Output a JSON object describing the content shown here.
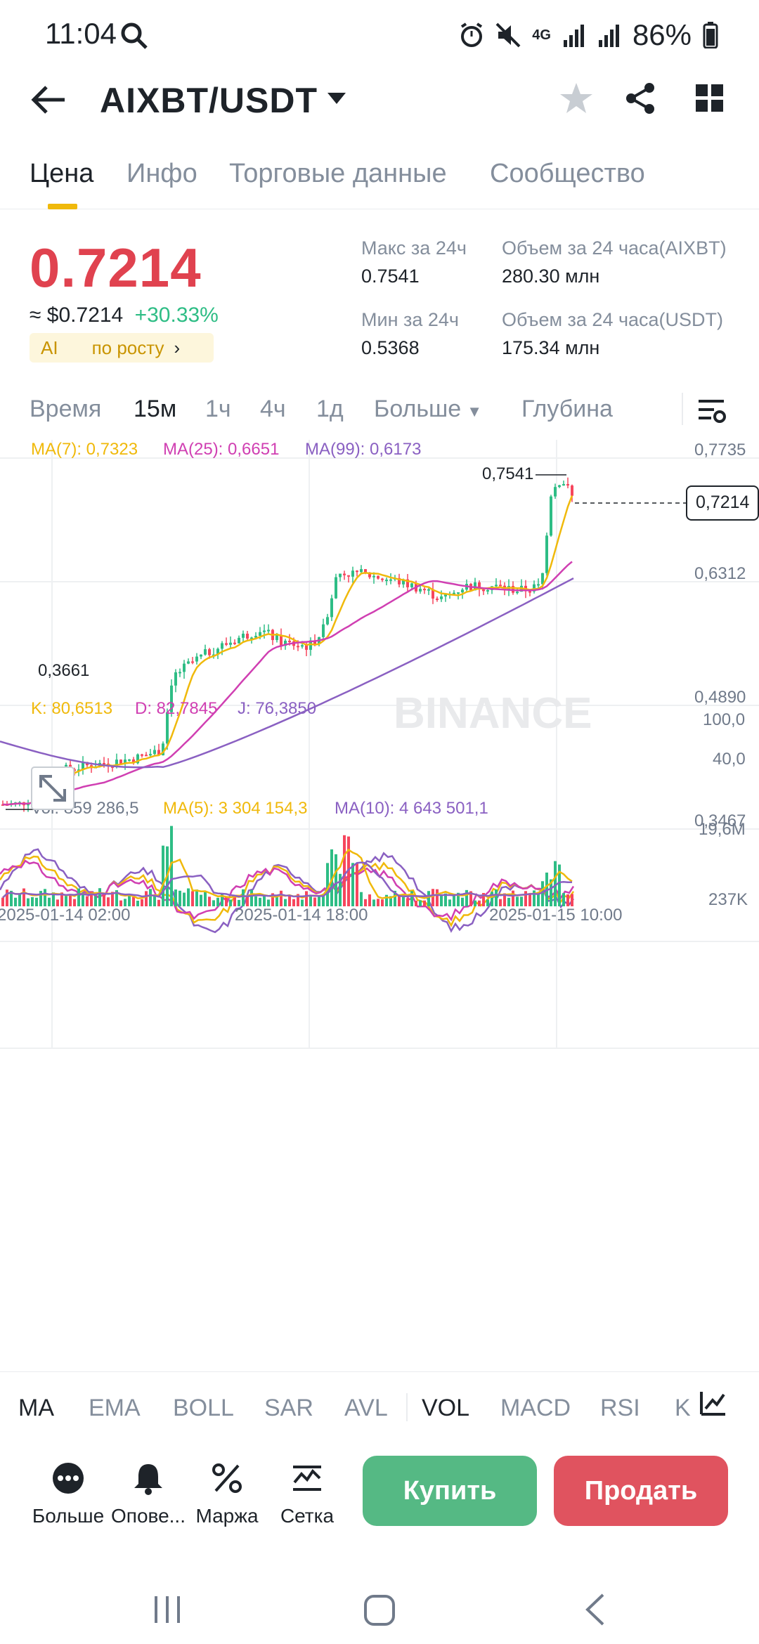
{
  "status_bar": {
    "time": "11:04",
    "network": "4G",
    "battery": "86%"
  },
  "header": {
    "pair": "AIXBT/USDT"
  },
  "tabs": [
    {
      "label": "Цена"
    },
    {
      "label": "Инфо"
    },
    {
      "label": "Торговые данные"
    },
    {
      "label": "Сообщество"
    }
  ],
  "ticker": {
    "last_price": "0.7214",
    "usd_price": "≈ $0.7214",
    "change": "+30.33%",
    "tag": "AI",
    "tag_link": "по росту",
    "high_label": "Макс за 24ч",
    "high": "0.7541",
    "low_label": "Мин за 24ч",
    "low": "0.5368",
    "vol_base_label": "Объем за 24 часа(AIXBT)",
    "vol_base": "280.30 млн",
    "vol_quote_label": "Объем за 24 часа(USDT)",
    "vol_quote": "175.34 млн"
  },
  "intervals": {
    "time": "Время",
    "i15m": "15м",
    "i1h": "1ч",
    "i4h": "4ч",
    "i1d": "1д",
    "more": "Больше",
    "depth": "Глубина"
  },
  "colors": {
    "up": "#2ebd85",
    "down": "#f6465d",
    "ma7": "#f0b90b",
    "ma25": "#d03fb2",
    "ma99": "#8a60c2",
    "accent": "#f0b90b",
    "buy": "#2ebd85",
    "sell": "#f6465d",
    "price_red": "#e0424f"
  },
  "chart_data": {
    "type": "candlestick",
    "ma_legend": {
      "ma7": "MA(7): 0,7323",
      "ma25": "MA(25): 0,6651",
      "ma99": "MA(99): 0,6173"
    },
    "price_axis": [
      "0,7735",
      "0,6312",
      "0,4890",
      "0,3467"
    ],
    "ylim": [
      0.3467,
      0.7735
    ],
    "high_marker": "0,7541",
    "low_marker": "0,3661",
    "last_price_label": "0,7214",
    "kdj_legend": {
      "k": "K: 80,6513",
      "d": "D: 82,7845",
      "j": "J: 76,3850"
    },
    "kdj_axis": [
      "100,0",
      "40,0"
    ],
    "vol_legend": {
      "vol": "Vol: 859 286,5",
      "ma5": "MA(5): 3 304 154,3",
      "ma10": "MA(10): 4 643 501,1"
    },
    "vol_axis": [
      "19,6M",
      "237K"
    ],
    "time_labels": [
      "2025-01-14 02:00",
      "2025-01-14 18:00",
      "2025-01-15 10:00"
    ],
    "watermark": "BINANCE"
  },
  "indicators": [
    "MA",
    "EMA",
    "BOLL",
    "SAR",
    "AVL",
    "VOL",
    "MACD",
    "RSI",
    "K"
  ],
  "actions": {
    "more": "Больше",
    "alerts": "Опове...",
    "margin": "Маржа",
    "grid": "Сетка",
    "buy": "Купить",
    "sell": "Продать"
  }
}
